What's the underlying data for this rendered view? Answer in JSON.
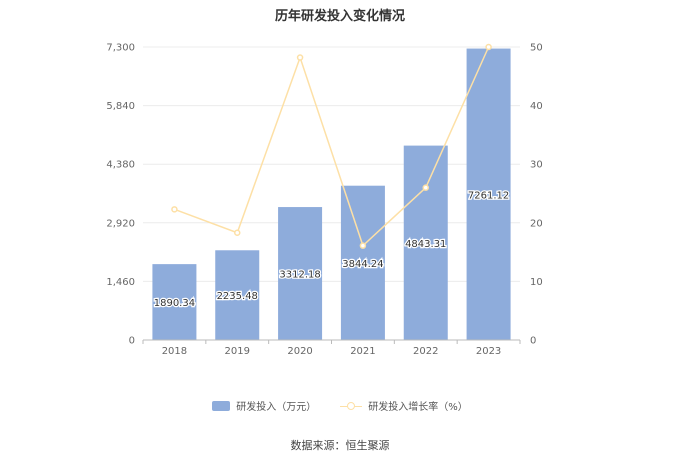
{
  "chart_data": {
    "type": "bar",
    "title": "历年研发投入变化情况",
    "categories": [
      "2018",
      "2019",
      "2020",
      "2021",
      "2022",
      "2023"
    ],
    "series": [
      {
        "name": "研发投入（万元）",
        "type": "bar",
        "axis": "left",
        "values": [
          1890.34,
          2235.48,
          3312.18,
          3844.24,
          4843.31,
          7261.12
        ]
      },
      {
        "name": "研发投入增长率（%）",
        "type": "line",
        "axis": "right",
        "values": [
          22.3,
          18.3,
          48.2,
          16.1,
          26.0,
          50.0
        ]
      }
    ],
    "y_left": {
      "ylim": [
        0,
        7300
      ],
      "ticks": [
        "0",
        "1,460",
        "2,920",
        "4,380",
        "5,840",
        "7,300"
      ]
    },
    "y_right": {
      "ylim": [
        0,
        50
      ],
      "ticks": [
        "0",
        "10",
        "20",
        "30",
        "40",
        "50"
      ]
    },
    "grid": true,
    "legend_position": "bottom-center",
    "colors": {
      "bar": "#8eacdb",
      "line": "#fde0a6"
    },
    "source": "数据来源：恒生聚源"
  }
}
